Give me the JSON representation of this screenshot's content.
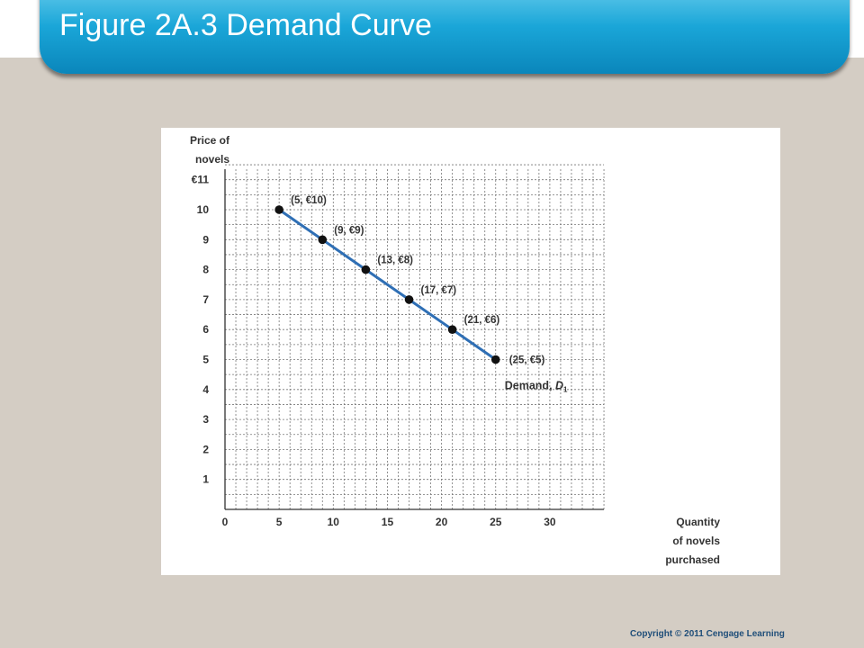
{
  "slide": {
    "title": "Figure 2A.3 Demand Curve",
    "copyright": "Copyright  © 2011  Cengage Learning",
    "colors": {
      "title_bar": "#1aa6d8",
      "background": "#d4cdc4",
      "line": "#2f6fb5"
    }
  },
  "chart_data": {
    "type": "line",
    "ylabel": [
      "Price of",
      "novels"
    ],
    "xlabel": [
      "Quantity",
      "of novels",
      "purchased"
    ],
    "xlim": [
      0,
      35
    ],
    "ylim": [
      0,
      11
    ],
    "x_ticks": [
      0,
      5,
      10,
      15,
      20,
      25,
      30
    ],
    "y_ticks": [
      1,
      2,
      3,
      4,
      5,
      6,
      7,
      8,
      9,
      10,
      11
    ],
    "y_tick_labels": [
      "1",
      "2",
      "3",
      "4",
      "5",
      "6",
      "7",
      "8",
      "9",
      "10",
      "€11"
    ],
    "grid": true,
    "series": [
      {
        "x": [
          5,
          9,
          13,
          17,
          21,
          25
        ],
        "y": [
          10,
          9,
          8,
          7,
          6,
          5
        ],
        "point_labels": [
          "(5, €10)",
          "(9, €9)",
          "(13, €8)",
          "(17, €7)",
          "(21, €6)",
          "(25, €5)"
        ]
      }
    ],
    "curve_label": {
      "text": "Demand, ",
      "symbol": "D",
      "subscript": "1"
    }
  }
}
